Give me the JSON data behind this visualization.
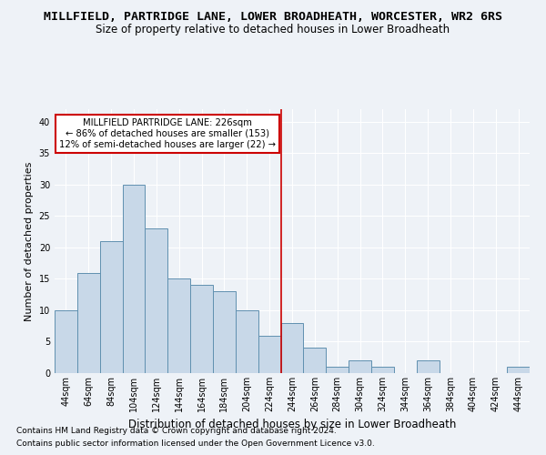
{
  "title": "MILLFIELD, PARTRIDGE LANE, LOWER BROADHEATH, WORCESTER, WR2 6RS",
  "subtitle": "Size of property relative to detached houses in Lower Broadheath",
  "xlabel": "Distribution of detached houses by size in Lower Broadheath",
  "ylabel": "Number of detached properties",
  "footnote1": "Contains HM Land Registry data © Crown copyright and database right 2024.",
  "footnote2": "Contains public sector information licensed under the Open Government Licence v3.0.",
  "bar_labels": [
    "44sqm",
    "64sqm",
    "84sqm",
    "104sqm",
    "124sqm",
    "144sqm",
    "164sqm",
    "184sqm",
    "204sqm",
    "224sqm",
    "244sqm",
    "264sqm",
    "284sqm",
    "304sqm",
    "324sqm",
    "344sqm",
    "364sqm",
    "384sqm",
    "404sqm",
    "424sqm",
    "444sqm"
  ],
  "bar_values": [
    10,
    16,
    21,
    30,
    23,
    15,
    14,
    13,
    10,
    6,
    8,
    4,
    1,
    2,
    1,
    0,
    2,
    0,
    0,
    0,
    1
  ],
  "bar_color": "#c8d8e8",
  "bar_edge_color": "#6090b0",
  "vline_color": "#cc0000",
  "vline_x": 9.5,
  "annotation_text": "MILLFIELD PARTRIDGE LANE: 226sqm\n← 86% of detached houses are smaller (153)\n12% of semi-detached houses are larger (22) →",
  "annotation_box_color": "#ffffff",
  "annotation_box_edge": "#cc0000",
  "ylim": [
    0,
    42
  ],
  "yticks": [
    0,
    5,
    10,
    15,
    20,
    25,
    30,
    35,
    40
  ],
  "background_color": "#eef2f7",
  "grid_color": "#ffffff",
  "title_fontsize": 9.5,
  "subtitle_fontsize": 8.5,
  "xlabel_fontsize": 8.5,
  "ylabel_fontsize": 8,
  "tick_fontsize": 7,
  "footnote_fontsize": 6.5
}
